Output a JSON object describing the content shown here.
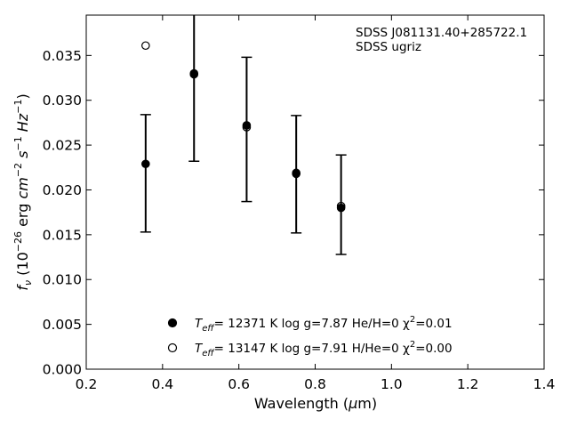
{
  "chart_data": {
    "type": "scatter",
    "xlabel": "Wavelength (μm)",
    "ylabel": "f_ν (10^−26 erg cm^−2 s^−1 Hz^−1)",
    "xlim": [
      0.2,
      1.4
    ],
    "ylim": [
      0.0,
      0.0395
    ],
    "x_ticks": [
      "0.2",
      "0.4",
      "0.6",
      "0.8",
      "1.0",
      "1.2",
      "1.4"
    ],
    "y_ticks": [
      "0.000",
      "0.005",
      "0.010",
      "0.015",
      "0.020",
      "0.025",
      "0.030",
      "0.035"
    ],
    "annotation": [
      "SDSS J081131.40+285722.1",
      "SDSS ugriz"
    ],
    "grid": false,
    "legend_position": "lower-center",
    "observed": {
      "x": [
        0.3557,
        0.4825,
        0.6204,
        0.7503,
        0.8679
      ],
      "y": [
        0.0229,
        0.0331,
        0.0271,
        0.022,
        0.0181
      ],
      "err_low": [
        0.0153,
        0.0232,
        0.0187,
        0.0152,
        0.0128
      ],
      "err_high": [
        0.0284,
        0.04,
        0.0348,
        0.0283,
        0.0239
      ]
    },
    "series": [
      {
        "name": "T_eff= 12371 K  log g=7.87  He/H=0  χ²=0.01",
        "marker": "filled-circle",
        "x": [
          0.3557,
          0.4825,
          0.6204,
          0.7503,
          0.8679
        ],
        "y": [
          0.0229,
          0.0329,
          0.0272,
          0.0219,
          0.018
        ]
      },
      {
        "name": "T_eff= 13147 K  log g=7.91  H/He=0  χ²=0.00",
        "marker": "open-circle",
        "x": [
          0.3557,
          0.4825,
          0.6204,
          0.7503,
          0.8679
        ],
        "y": [
          0.0361,
          0.033,
          0.027,
          0.0218,
          0.0182
        ]
      }
    ],
    "legend": [
      {
        "T_sub": "eff",
        "text": "= 12371 K  log g=7.87  He/H=0  χ",
        "chi_sup": "2",
        "tail": "=0.01"
      },
      {
        "T_sub": "eff",
        "text": "= 13147 K  log g=7.91  H/He=0  χ",
        "chi_sup": "2",
        "tail": "=0.00"
      }
    ]
  }
}
